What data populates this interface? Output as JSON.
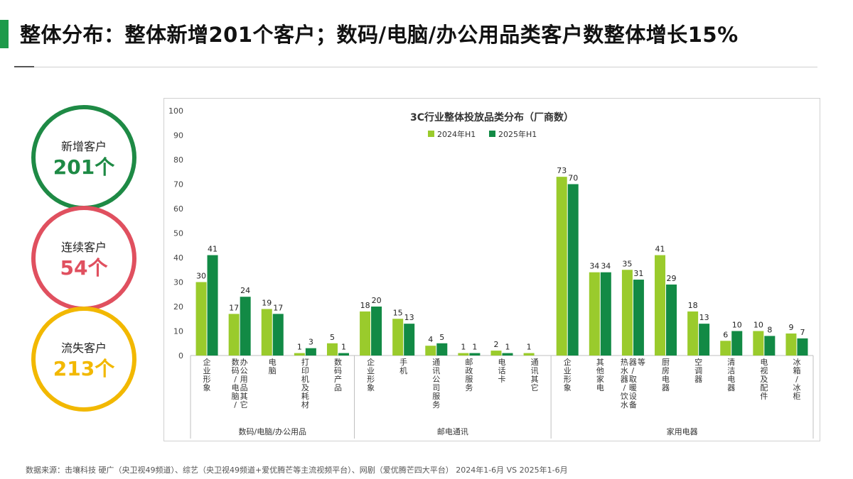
{
  "header": {
    "title": "整体分布：整体新增201个客户；数码/电脑/办公用品类客户数整体增长15%",
    "accent_color": "#1e9a4a"
  },
  "kpis": [
    {
      "label": "新增客户",
      "value": "201个",
      "color": "#1e8a45"
    },
    {
      "label": "连续客户",
      "value": "54个",
      "color": "#e0505f"
    },
    {
      "label": "流失客户",
      "value": "213个",
      "color": "#f2b800"
    }
  ],
  "chart_data": {
    "type": "bar",
    "title": "3C行业整体投放品类分布（厂商数）",
    "ylim": [
      0,
      100
    ],
    "yticks": [
      0,
      10,
      20,
      30,
      40,
      50,
      60,
      70,
      80,
      90,
      100
    ],
    "legend_position": "top-center",
    "series": [
      {
        "name": "2024年H1",
        "color": "#9acb2c"
      },
      {
        "name": "2025年H1",
        "color": "#128a45"
      }
    ],
    "groups": [
      {
        "name": "数码/电脑/办公用品",
        "categories": [
          {
            "label": "企业形象",
            "values": [
              30,
              41
            ]
          },
          {
            "label": "数码/电脑/办公用品其它",
            "values": [
              17,
              24
            ]
          },
          {
            "label": "电脑",
            "values": [
              19,
              17
            ]
          },
          {
            "label": "打印机及耗材",
            "values": [
              1,
              3
            ]
          },
          {
            "label": "数码产品",
            "values": [
              5,
              1
            ]
          }
        ]
      },
      {
        "name": "邮电通讯",
        "categories": [
          {
            "label": "企业形象",
            "values": [
              18,
              20
            ]
          },
          {
            "label": "手机",
            "values": [
              15,
              13
            ]
          },
          {
            "label": "通讯公司服务",
            "values": [
              4,
              5
            ]
          },
          {
            "label": "邮政服务",
            "values": [
              1,
              1
            ]
          },
          {
            "label": "电话卡",
            "values": [
              2,
              1
            ]
          },
          {
            "label": "通讯其它",
            "values": [
              1,
              null
            ]
          }
        ]
      },
      {
        "name": "家用电器",
        "categories": [
          {
            "label": "企业形象",
            "values": [
              73,
              70
            ]
          },
          {
            "label": "其他家电",
            "values": [
              34,
              34
            ]
          },
          {
            "label": "热水器/饮水器/取暖设备等",
            "values": [
              35,
              31
            ]
          },
          {
            "label": "厨房电器",
            "values": [
              41,
              29
            ]
          },
          {
            "label": "空调器",
            "values": [
              18,
              13
            ]
          },
          {
            "label": "清洁电器",
            "values": [
              6,
              10
            ]
          },
          {
            "label": "电视及配件",
            "values": [
              10,
              8
            ]
          },
          {
            "label": "冰箱/冰柜",
            "values": [
              9,
              7
            ]
          }
        ]
      }
    ]
  },
  "footer": {
    "source": "数据来源：击壤科技 硬广（央卫视49频道）、综艺（央卫视49频道+爱优腾芒等主流视频平台）、网剧（爱优腾芒四大平台） 2024年1-6月 VS 2025年1-6月"
  }
}
